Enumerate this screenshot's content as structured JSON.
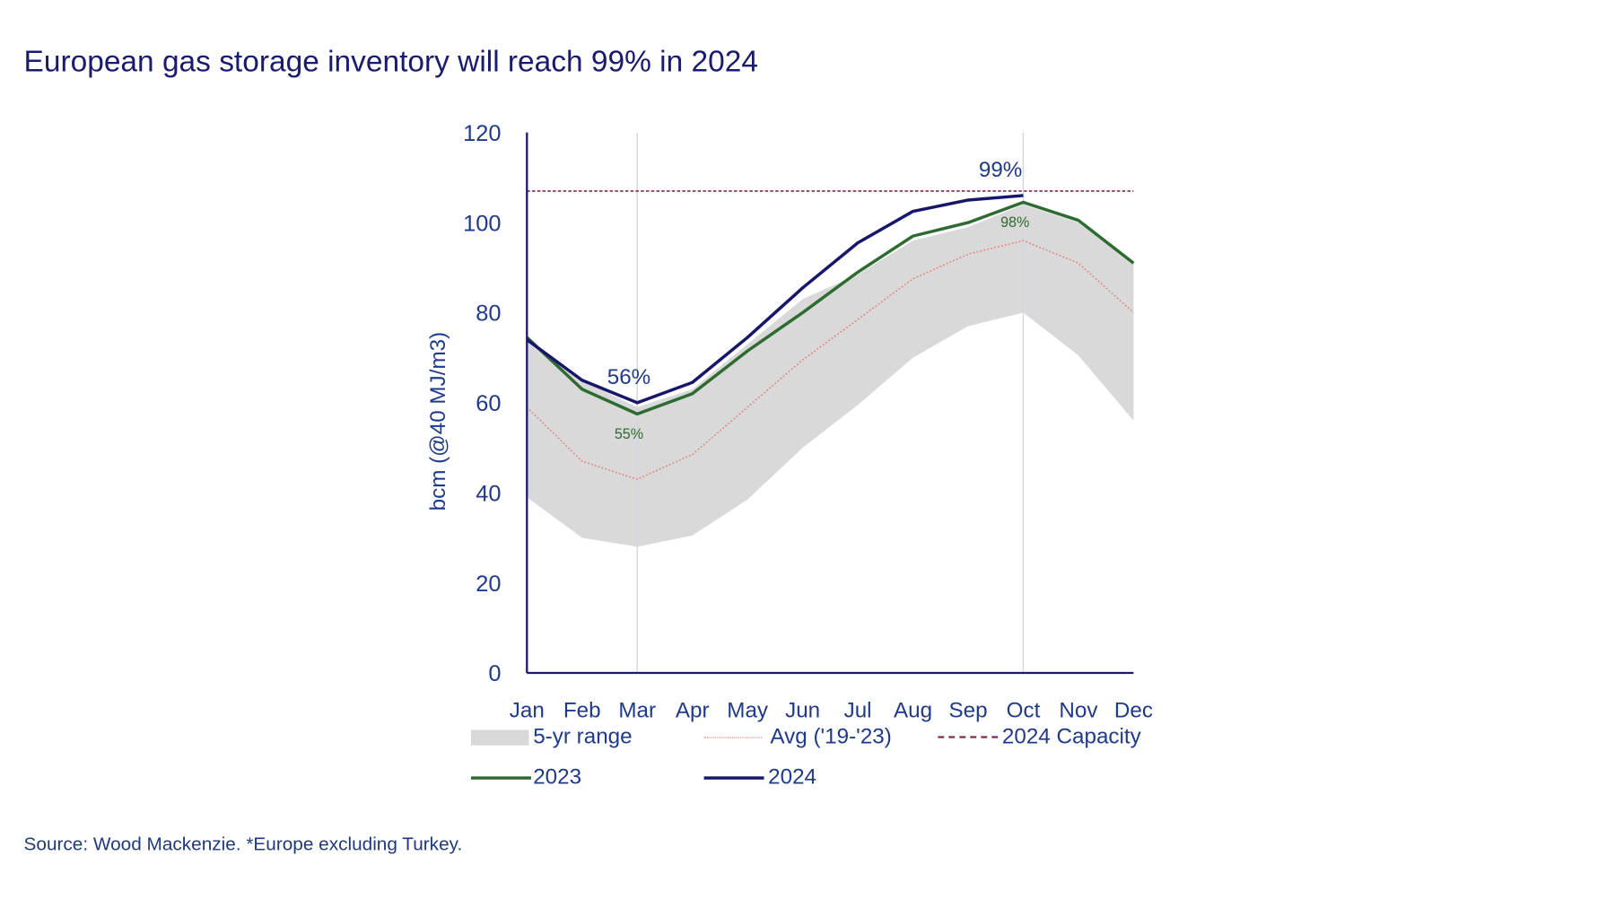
{
  "title": "European gas storage inventory will reach 99% in 2024",
  "source": "Source: Wood Mackenzie. *Europe excluding Turkey.",
  "chart_data": {
    "type": "line",
    "title": "European gas storage inventory will reach 99% in 2024",
    "xlabel": "",
    "ylabel": "bcm (@40 MJ/m3)",
    "ylim": [
      0,
      120
    ],
    "yticks": [
      "0",
      "20",
      "40",
      "60",
      "80",
      "100",
      "120"
    ],
    "categories": [
      "Jan",
      "Feb",
      "Mar",
      "Apr",
      "May",
      "Jun",
      "Jul",
      "Aug",
      "Sep",
      "Oct",
      "Nov",
      "Dec"
    ],
    "grid": false,
    "legend_position": "bottom",
    "series": [
      {
        "name": "5-yr range",
        "kind": "band",
        "color": "#d9d9d9",
        "upper": [
          74,
          65,
          59,
          63,
          73,
          83,
          88.5,
          96,
          99,
          104,
          100,
          91
        ],
        "lower": [
          39,
          30,
          28,
          30.5,
          38.5,
          50,
          59.5,
          70,
          77,
          80,
          70.5,
          56
        ]
      },
      {
        "name": "Avg ('19-'23)",
        "kind": "dotted",
        "color": "#e87a7a",
        "values": [
          59,
          47,
          43,
          48.5,
          59,
          69.5,
          78.5,
          87.5,
          93,
          96,
          91,
          80
        ]
      },
      {
        "name": "2024 Capacity",
        "kind": "dashed",
        "color": "#7a2a4a",
        "value": 107
      },
      {
        "name": "2023",
        "kind": "solid",
        "color": "#2e6b30",
        "values": [
          74.5,
          63,
          57.5,
          62,
          71.5,
          80,
          89,
          97,
          100,
          104.5,
          100.5,
          91
        ]
      },
      {
        "name": "2024",
        "kind": "solid",
        "color": "#16166b",
        "values": [
          74,
          65,
          60,
          64.5,
          74.5,
          85.5,
          95.5,
          102.5,
          105,
          106,
          null,
          null
        ]
      }
    ],
    "annotations": [
      {
        "text": "56%",
        "series": "2024",
        "x": "Mar",
        "color": "#1f3a8a"
      },
      {
        "text": "55%",
        "series": "2023",
        "x": "Mar",
        "color": "#2e6b30"
      },
      {
        "text": "99%",
        "series": "2024",
        "x": "Oct",
        "color": "#1f3a8a"
      },
      {
        "text": "98%",
        "series": "2023",
        "x": "Oct",
        "color": "#2e6b30"
      }
    ],
    "reference_lines": [
      "Mar",
      "Oct"
    ]
  }
}
